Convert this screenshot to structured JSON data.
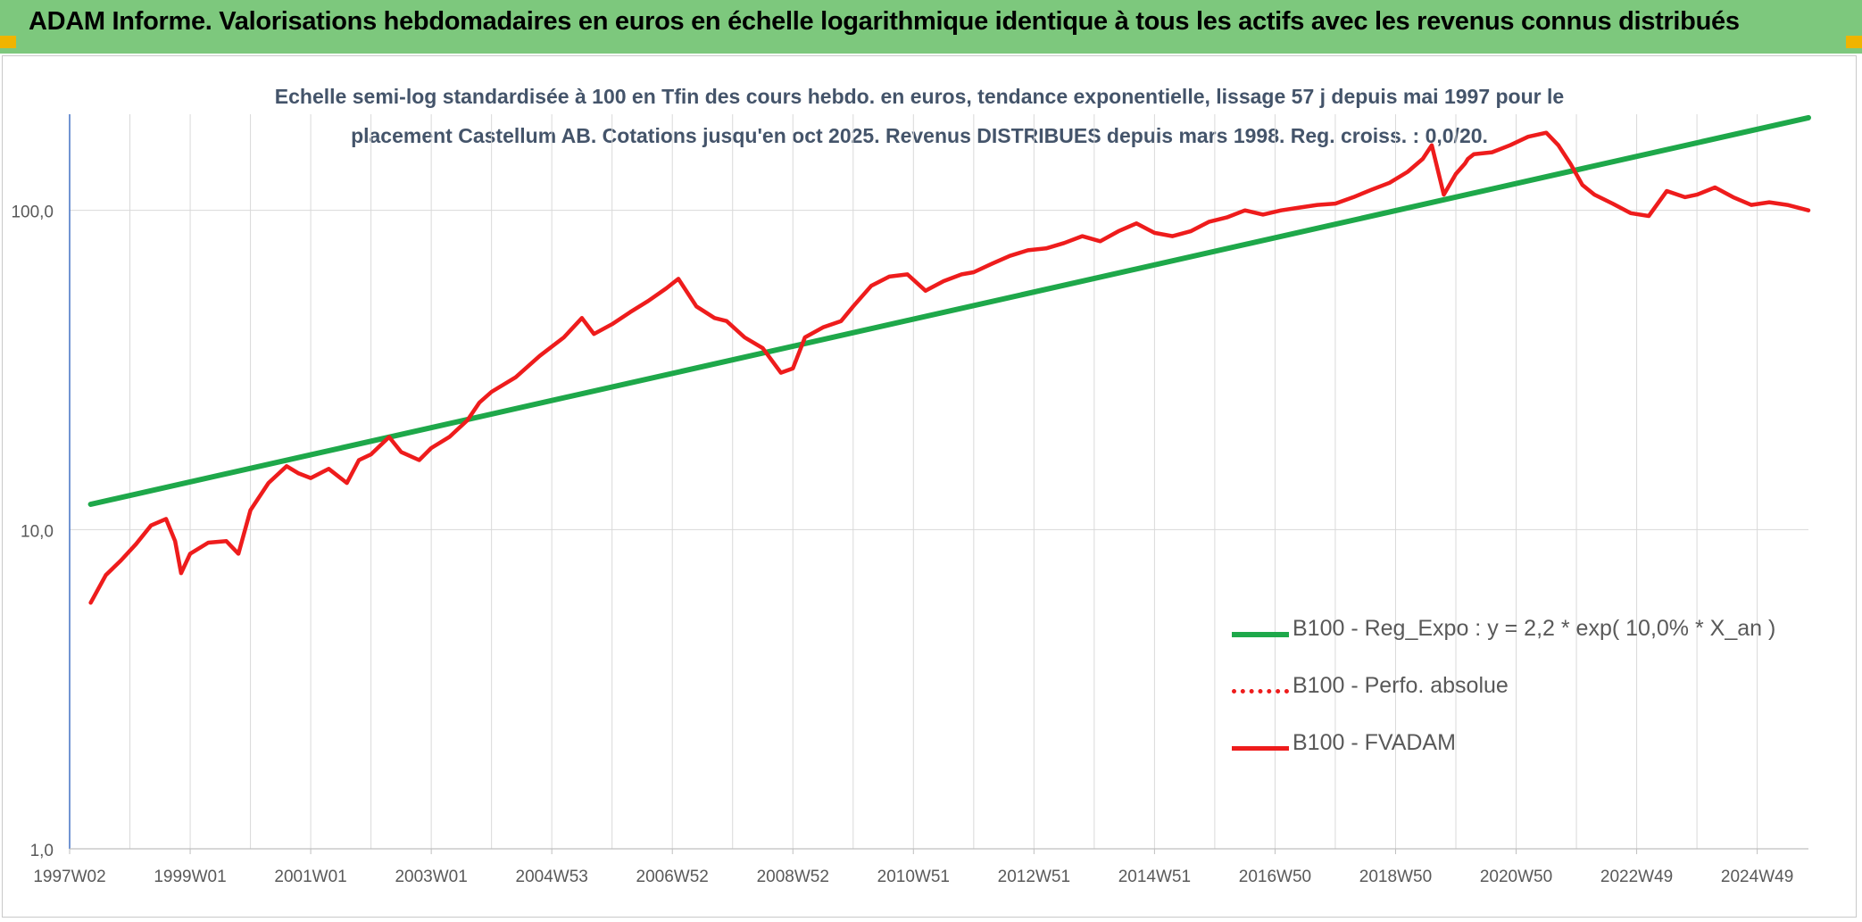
{
  "header": {
    "title": "ADAM Informe. Valorisations hebdomadaires en euros en échelle logarithmique identique à tous les actifs avec les revenus connus distribués"
  },
  "colors": {
    "header_bg": "#7dc87d",
    "corner_accent": "#f0b400",
    "trend": "#1ea84a",
    "price": "#ee1c1c",
    "title_text": "#44546a"
  },
  "chart_data": {
    "type": "line",
    "title_line1": "Echelle semi-log standardisée à 100 en Tfin des cours hebdo. en euros, tendance exponentielle, lissage 57 j depuis mai 1997 pour le",
    "title_line2": "placement Castellum AB. Cotations jusqu'en oct 2025. Revenus DISTRIBUES depuis mars 1998. Reg. croiss. : 0,0/20.",
    "y_scale": "log",
    "ylim": [
      1,
      200
    ],
    "y_ticks": [
      1,
      10,
      100
    ],
    "y_tick_labels": [
      "1,0",
      "10,0",
      "100,0"
    ],
    "x_tick_labels": [
      "1997W02",
      "1999W01",
      "2001W01",
      "2003W01",
      "2004W53",
      "2006W52",
      "2008W52",
      "2010W51",
      "2012W51",
      "2014W51",
      "2016W50",
      "2018W50",
      "2020W50",
      "2022W49",
      "2024W49"
    ],
    "x_tick_years": [
      1997.0,
      1999.0,
      2001.0,
      2003.0,
      2005.0,
      2007.0,
      2009.0,
      2011.0,
      2013.0,
      2015.0,
      2017.0,
      2019.0,
      2021.0,
      2023.0,
      2025.0
    ],
    "xlim": [
      1997.0,
      2025.85
    ],
    "grid": true,
    "legend_position": "bottom-right",
    "series": [
      {
        "name": "B100 - Reg_Expo : y = 2,2 * exp( 10,0% *  X_an )",
        "style": "solid-thick",
        "color": "#1ea84a",
        "x": [
          1997.35,
          2025.85
        ],
        "y": [
          12.0,
          195.0
        ]
      },
      {
        "name": "B100 - Perfo. absolue",
        "style": "dotted",
        "color": "#ee1c1c",
        "x": [],
        "y": []
      },
      {
        "name": "B100 - FVADAM",
        "style": "solid",
        "color": "#ee1c1c",
        "x": [
          1997.35,
          1997.6,
          1997.85,
          1998.1,
          1998.35,
          1998.6,
          1998.75,
          1998.85,
          1999.0,
          1999.3,
          1999.6,
          1999.8,
          2000.0,
          2000.3,
          2000.6,
          2000.8,
          2001.0,
          2001.3,
          2001.6,
          2001.8,
          2002.0,
          2002.3,
          2002.5,
          2002.8,
          2003.0,
          2003.3,
          2003.6,
          2003.8,
          2004.0,
          2004.4,
          2004.8,
          2005.2,
          2005.5,
          2005.7,
          2006.0,
          2006.3,
          2006.6,
          2006.9,
          2007.1,
          2007.4,
          2007.7,
          2007.9,
          2008.2,
          2008.5,
          2008.8,
          2009.0,
          2009.2,
          2009.5,
          2009.8,
          2010.0,
          2010.3,
          2010.6,
          2010.9,
          2011.2,
          2011.5,
          2011.8,
          2012.0,
          2012.3,
          2012.6,
          2012.9,
          2013.2,
          2013.5,
          2013.8,
          2014.1,
          2014.4,
          2014.7,
          2015.0,
          2015.3,
          2015.6,
          2015.9,
          2016.2,
          2016.5,
          2016.8,
          2017.1,
          2017.4,
          2017.7,
          2018.0,
          2018.3,
          2018.6,
          2018.9,
          2019.2,
          2019.45,
          2019.6,
          2019.8,
          2020.0,
          2020.15,
          2020.2,
          2020.3,
          2020.6,
          2020.9,
          2021.2,
          2021.5,
          2021.7,
          2021.9,
          2022.1,
          2022.3,
          2022.6,
          2022.9,
          2023.2,
          2023.5,
          2023.8,
          2024.0,
          2024.3,
          2024.6,
          2024.9,
          2025.2,
          2025.5,
          2025.85
        ],
        "y": [
          5.9,
          7.2,
          8.0,
          9.0,
          10.3,
          10.8,
          9.2,
          7.3,
          8.4,
          9.1,
          9.2,
          8.4,
          11.5,
          14.0,
          15.8,
          15.0,
          14.5,
          15.5,
          14.0,
          16.5,
          17.2,
          19.5,
          17.5,
          16.5,
          18.0,
          19.5,
          22.0,
          25.0,
          27.0,
          30.0,
          35.0,
          40.0,
          46.0,
          41.0,
          44.0,
          48.0,
          52.0,
          57.0,
          61.0,
          50.0,
          46.0,
          45.0,
          40.0,
          37.0,
          31.0,
          32.0,
          40.0,
          43.0,
          45.0,
          50.0,
          58.0,
          62.0,
          63.0,
          56.0,
          60.0,
          63.0,
          64.0,
          68.0,
          72.0,
          75.0,
          76.0,
          79.0,
          83.0,
          80.0,
          86.0,
          91.0,
          85.0,
          83.0,
          86.0,
          92.0,
          95.0,
          100.0,
          97.0,
          100.0,
          102.0,
          104.0,
          105.0,
          110.0,
          116.0,
          122.0,
          132.0,
          145.0,
          160.0,
          112.0,
          130.0,
          140.0,
          145.0,
          150.0,
          152.0,
          160.0,
          170.0,
          175.0,
          160.0,
          140.0,
          120.0,
          112.0,
          105.0,
          98.0,
          96.0,
          115.0,
          110.0,
          112.0,
          118.0,
          110.0,
          104.0,
          106.0,
          104.0,
          100.0
        ]
      }
    ]
  }
}
